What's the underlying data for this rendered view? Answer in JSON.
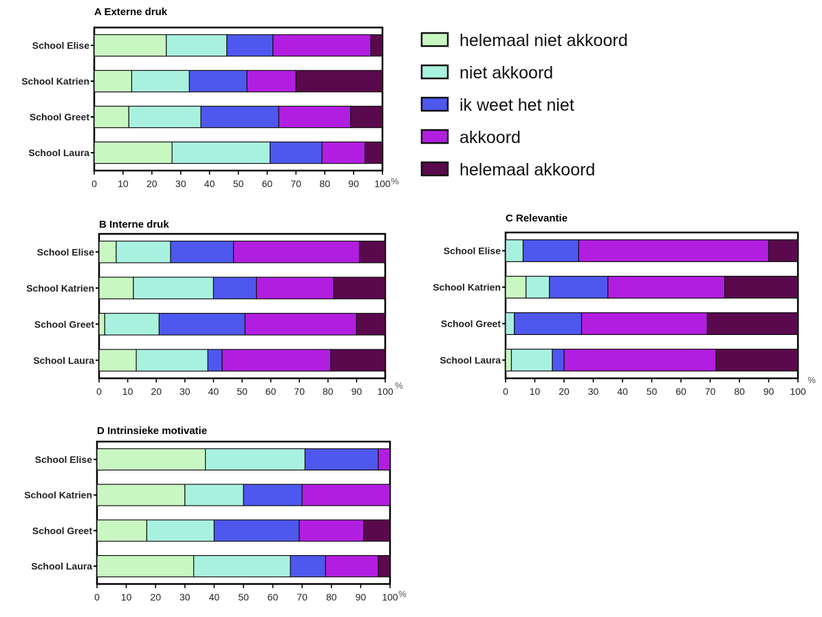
{
  "colors": {
    "helemaal niet akkoord": "#c9f7c2",
    "niet akkoord": "#a9f1df",
    "ik weet het niet": "#4e58ee",
    "akkoord": "#b21ee0",
    "helemaal akkoord": "#5a0a4c"
  },
  "legend": {
    "items": [
      "helemaal niet akkoord",
      "niet akkoord",
      "ik weet het niet",
      "akkoord",
      "helemaal akkoord"
    ]
  },
  "chart_data": [
    {
      "panel": "A",
      "title": "A  Externe druk",
      "type": "bar",
      "orientation": "horizontal",
      "stacked": true,
      "categories": [
        "School Elise",
        "School Katrien",
        "School Greet",
        "School Laura"
      ],
      "series": [
        {
          "name": "helemaal niet akkoord",
          "values": [
            25,
            13,
            12,
            27
          ]
        },
        {
          "name": "niet akkoord",
          "values": [
            21,
            20,
            25,
            34
          ]
        },
        {
          "name": "ik weet het niet",
          "values": [
            16,
            20,
            27,
            18
          ]
        },
        {
          "name": "akkoord",
          "values": [
            34,
            17,
            25,
            15
          ]
        },
        {
          "name": "helemaal akkoord",
          "values": [
            4,
            30,
            11,
            6
          ]
        }
      ],
      "xlim": [
        0,
        100
      ],
      "xticks": [
        0,
        10,
        20,
        30,
        40,
        50,
        60,
        70,
        80,
        90,
        100
      ],
      "xlabel": "%"
    },
    {
      "panel": "B",
      "title": "B  Interne druk",
      "type": "bar",
      "orientation": "horizontal",
      "stacked": true,
      "categories": [
        "School Elise",
        "School Katrien",
        "School Greet",
        "School Laura"
      ],
      "series": [
        {
          "name": "helemaal niet akkoord",
          "values": [
            6,
            12,
            2,
            13
          ]
        },
        {
          "name": "niet akkoord",
          "values": [
            19,
            28,
            19,
            25
          ]
        },
        {
          "name": "ik weet het niet",
          "values": [
            22,
            15,
            30,
            5
          ]
        },
        {
          "name": "akkoord",
          "values": [
            44,
            27,
            39,
            38
          ]
        },
        {
          "name": "helemaal akkoord",
          "values": [
            9,
            18,
            10,
            19
          ]
        }
      ],
      "xlim": [
        0,
        100
      ],
      "xticks": [
        0,
        10,
        20,
        30,
        40,
        50,
        60,
        70,
        80,
        90,
        100
      ],
      "xlabel": "%"
    },
    {
      "panel": "C",
      "title": "C  Relevantie",
      "type": "bar",
      "orientation": "horizontal",
      "stacked": true,
      "categories": [
        "School Elise",
        "School Katrien",
        "School Greet",
        "School Laura"
      ],
      "series": [
        {
          "name": "helemaal niet akkoord",
          "values": [
            0,
            7,
            0,
            2
          ]
        },
        {
          "name": "niet akkoord",
          "values": [
            6,
            8,
            3,
            14
          ]
        },
        {
          "name": "ik weet het niet",
          "values": [
            19,
            20,
            23,
            4
          ]
        },
        {
          "name": "akkoord",
          "values": [
            65,
            40,
            43,
            52
          ]
        },
        {
          "name": "helemaal akkoord",
          "values": [
            10,
            25,
            31,
            28
          ]
        }
      ],
      "xlim": [
        0,
        100
      ],
      "xticks": [
        0,
        10,
        20,
        30,
        40,
        50,
        60,
        70,
        80,
        90,
        100
      ],
      "xlabel": "%"
    },
    {
      "panel": "D",
      "title": "D  Intrinsieke motivatie",
      "type": "bar",
      "orientation": "horizontal",
      "stacked": true,
      "categories": [
        "School Elise",
        "School Katrien",
        "School Greet",
        "School Laura"
      ],
      "series": [
        {
          "name": "helemaal niet akkoord",
          "values": [
            37,
            30,
            17,
            33
          ]
        },
        {
          "name": "niet akkoord",
          "values": [
            34,
            20,
            23,
            33
          ]
        },
        {
          "name": "ik weet het niet",
          "values": [
            25,
            20,
            29,
            12
          ]
        },
        {
          "name": "akkoord",
          "values": [
            4,
            30,
            22,
            18
          ]
        },
        {
          "name": "helemaal akkoord",
          "values": [
            0,
            0,
            9,
            4
          ]
        }
      ],
      "xlim": [
        0,
        100
      ],
      "xticks": [
        0,
        10,
        20,
        30,
        40,
        50,
        60,
        70,
        80,
        90,
        100
      ],
      "xlabel": "%"
    }
  ]
}
